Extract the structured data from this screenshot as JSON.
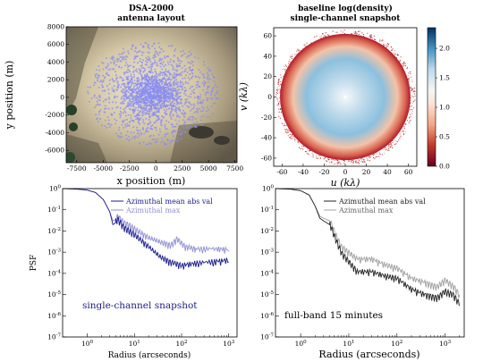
{
  "figure": {
    "colors": {
      "point": "#8a8cf0",
      "dark_blue": "#1b1b8f",
      "light_blue": "#8f8fd8",
      "black": "#222222",
      "gray": "#a0a0a0"
    }
  },
  "chart_data": [
    {
      "id": "antenna",
      "type": "scatter",
      "title": "DSA-2000",
      "subtitle": "antenna layout",
      "xlabel": "x position (m)",
      "ylabel": "y position (m)",
      "xlim": [
        -8500,
        7700
      ],
      "ylim": [
        -7400,
        8000
      ],
      "xticks": [
        -7500,
        -5000,
        -2500,
        0,
        2500,
        5000,
        7500
      ],
      "yticks": [
        -6000,
        -4000,
        -2000,
        0,
        2000,
        4000,
        6000,
        8000
      ],
      "background": "satellite image",
      "points_note": "about 2000 antenna positions",
      "n_points": 2000
    },
    {
      "id": "uv",
      "type": "heatmap",
      "title": "baseline log(density)",
      "subtitle": "single-channel snapshot",
      "xlabel": "u (kλ)",
      "ylabel": "v (kλ)",
      "xlim": [
        -68,
        68
      ],
      "ylim": [
        -68,
        68
      ],
      "xticks": [
        -60,
        -40,
        -20,
        0,
        20,
        40,
        60
      ],
      "yticks": [
        -60,
        -40,
        -20,
        0,
        20,
        40,
        60
      ],
      "colorbar": {
        "range": [
          0.0,
          2.35
        ],
        "ticks": [
          0.0,
          0.5,
          1.0,
          1.5,
          2.0
        ],
        "cmap": "RdBu"
      },
      "radius_max": 62
    },
    {
      "id": "psf_snapshot",
      "type": "line",
      "xlabel": "Radius (arcseconds)",
      "ylabel": "PSF",
      "xscale": "log",
      "yscale": "log",
      "xlim": [
        0.3,
        1500
      ],
      "ylim": [
        1e-07,
        1
      ],
      "annotation": "single-channel snapshot",
      "series": [
        {
          "name": "Azimuthal mean abs val",
          "color": "#1b1b8f",
          "points": [
            [
              0.3,
              1.0
            ],
            [
              0.6,
              0.95
            ],
            [
              1.0,
              0.85
            ],
            [
              1.5,
              0.65
            ],
            [
              2.2,
              0.3
            ],
            [
              3.0,
              0.08
            ],
            [
              3.5,
              0.02
            ],
            [
              4.5,
              0.03
            ],
            [
              6.0,
              0.012
            ],
            [
              8,
              0.008
            ],
            [
              12,
              0.004
            ],
            [
              20,
              0.0015
            ],
            [
              35,
              0.0005
            ],
            [
              60,
              0.00028
            ],
            [
              100,
              0.0002
            ],
            [
              200,
              0.00025
            ],
            [
              500,
              0.0003
            ],
            [
              1000,
              0.00035
            ]
          ]
        },
        {
          "name": "Azimuthal max",
          "color": "#8f8fd8",
          "points": [
            [
              0.3,
              1.0
            ],
            [
              0.6,
              0.95
            ],
            [
              1.0,
              0.85
            ],
            [
              1.5,
              0.65
            ],
            [
              2.2,
              0.3
            ],
            [
              3.0,
              0.08
            ],
            [
              3.5,
              0.03
            ],
            [
              4.5,
              0.04
            ],
            [
              6.0,
              0.02
            ],
            [
              8,
              0.015
            ],
            [
              12,
              0.008
            ],
            [
              20,
              0.004
            ],
            [
              35,
              0.0025
            ],
            [
              60,
              0.0018
            ],
            [
              80,
              0.0035
            ],
            [
              120,
              0.0015
            ],
            [
              200,
              0.0012
            ],
            [
              500,
              0.0012
            ],
            [
              1000,
              0.0011
            ]
          ]
        }
      ]
    },
    {
      "id": "psf_fullband",
      "type": "line",
      "xlabel": "Radius (arcseconds)",
      "ylabel": "",
      "xscale": "log",
      "yscale": "log",
      "xlim": [
        0.3,
        2500
      ],
      "ylim": [
        1e-07,
        1
      ],
      "annotation": "full-band 15 minutes",
      "series": [
        {
          "name": "Azimuthal mean abs val",
          "color": "#222222",
          "points": [
            [
              0.3,
              1.0
            ],
            [
              0.6,
              0.95
            ],
            [
              1.0,
              0.8
            ],
            [
              1.5,
              0.5
            ],
            [
              2.0,
              0.15
            ],
            [
              2.5,
              0.04
            ],
            [
              3.0,
              0.03
            ],
            [
              4.0,
              0.02
            ],
            [
              5.0,
              0.005
            ],
            [
              7,
              0.0008
            ],
            [
              10,
              0.0003
            ],
            [
              15,
              0.0001
            ],
            [
              30,
              0.0001
            ],
            [
              60,
              6e-05
            ],
            [
              100,
              5e-05
            ],
            [
              200,
              1.5e-05
            ],
            [
              400,
              8e-06
            ],
            [
              700,
              6e-06
            ],
            [
              1000,
              1.2e-05
            ],
            [
              1500,
              8e-06
            ],
            [
              2000,
              3e-06
            ]
          ]
        },
        {
          "name": "Azimuthal max",
          "color": "#a0a0a0",
          "points": [
            [
              0.3,
              1.0
            ],
            [
              0.6,
              0.95
            ],
            [
              1.0,
              0.8
            ],
            [
              1.5,
              0.5
            ],
            [
              2.0,
              0.15
            ],
            [
              2.5,
              0.05
            ],
            [
              3.0,
              0.04
            ],
            [
              4.0,
              0.03
            ],
            [
              5.0,
              0.008
            ],
            [
              7,
              0.0015
            ],
            [
              10,
              0.0008
            ],
            [
              15,
              0.0004
            ],
            [
              30,
              0.0004
            ],
            [
              60,
              0.0002
            ],
            [
              100,
              0.00015
            ],
            [
              200,
              5e-05
            ],
            [
              400,
              3e-05
            ],
            [
              700,
              2e-05
            ],
            [
              1000,
              4e-05
            ],
            [
              1500,
              2e-05
            ],
            [
              2000,
              8e-06
            ]
          ]
        }
      ]
    }
  ]
}
